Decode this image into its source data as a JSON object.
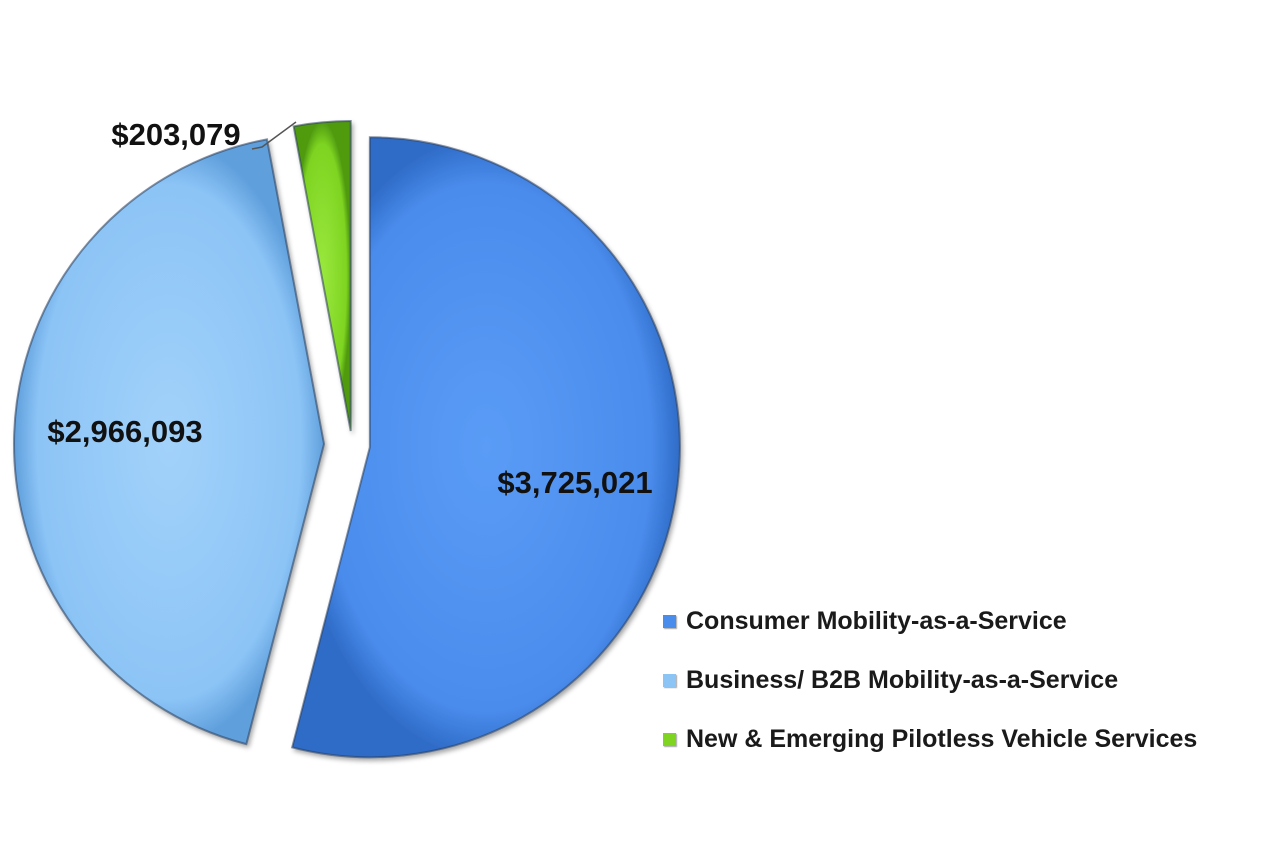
{
  "chart_data": {
    "type": "pie",
    "title": "",
    "categories": [
      "Consumer Mobility-as-a-Service",
      "Business/ B2B Mobility-as-a-Service",
      "New & Emerging Pilotless Vehicle Services"
    ],
    "values": [
      3725021,
      2966093,
      203079
    ],
    "data_labels": [
      "$3,725,021",
      "$2,966,093",
      "$203,079"
    ],
    "colors": [
      "#4a8cec",
      "#8cc4f6",
      "#7ed421"
    ],
    "exploded": true,
    "legend_position": "bottom-right"
  }
}
